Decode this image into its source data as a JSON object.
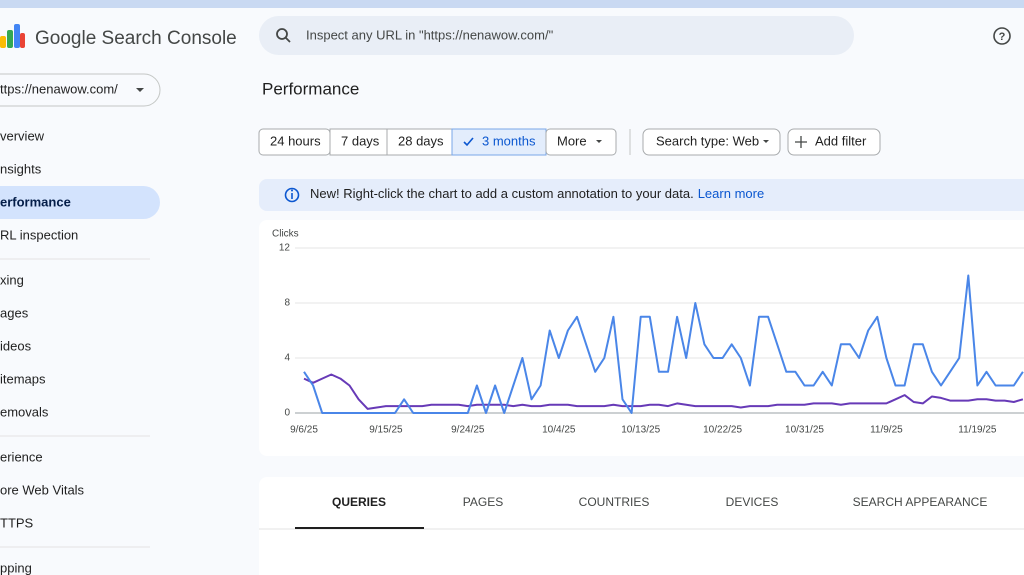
{
  "header": {
    "product": "Google Search Console",
    "search_placeholder": "Inspect any URL in \"https://nenawow.com/\""
  },
  "sidebar": {
    "property": "ttps://nenawow.com/",
    "groups": [
      [
        "verview",
        "nsights",
        "erformance",
        "RL inspection"
      ],
      [
        "xing",
        "ages",
        "ideos",
        "itemaps",
        "emovals"
      ],
      [
        "erience",
        "ore Web Vitals",
        "TTPS"
      ],
      [
        "pping"
      ]
    ],
    "selected": [
      0,
      2
    ]
  },
  "page_title": "Performance",
  "date_filters": [
    "24 hours",
    "7 days",
    "28 days",
    "3 months",
    "More"
  ],
  "selected_filter": 3,
  "filters": [
    "Search type: Web",
    "Add filter"
  ],
  "banner": {
    "text": "New! Right-click the chart to add a custom annotation to your data.",
    "link": "Learn more"
  },
  "chart_data": {
    "type": "line",
    "y_label": "Clicks",
    "categories": [
      "9/6/25",
      null,
      null,
      null,
      null,
      null,
      null,
      null,
      null,
      "9/15/25",
      null,
      null,
      null,
      null,
      null,
      null,
      null,
      null,
      "9/24/25",
      null,
      null,
      null,
      null,
      null,
      null,
      null,
      null,
      null,
      "10/4/25",
      null,
      null,
      null,
      null,
      null,
      null,
      null,
      null,
      "10/13/25",
      null,
      null,
      null,
      null,
      null,
      null,
      null,
      null,
      "10/22/25",
      null,
      null,
      null,
      null,
      null,
      null,
      null,
      null,
      "10/31/25",
      null,
      null,
      null,
      null,
      null,
      null,
      null,
      null,
      "11/9/25",
      null,
      null,
      null,
      null,
      null,
      null,
      null,
      null,
      null,
      "11/19/25",
      null,
      null,
      null,
      null,
      null
    ],
    "series": [
      {
        "color": "#4a86e8",
        "values": [
          3,
          2,
          0,
          0,
          0,
          0,
          0,
          0,
          0,
          0,
          0,
          1,
          0,
          0,
          0,
          0,
          0,
          0,
          0,
          2,
          0,
          2,
          0,
          2,
          4,
          1,
          2,
          6,
          4,
          6,
          7,
          5,
          3,
          4,
          7,
          1,
          0,
          7,
          7,
          3,
          3,
          7,
          4,
          8,
          5,
          4,
          4,
          5,
          4,
          2,
          7,
          7,
          5,
          3,
          3,
          2,
          2,
          3,
          2,
          5,
          5,
          4,
          6,
          7,
          4,
          2,
          2,
          5,
          5,
          3,
          2,
          3,
          4,
          10,
          2,
          3,
          2,
          2,
          2,
          3
        ]
      },
      {
        "color": "#673ab7",
        "values": [
          2.5,
          2.2,
          2.5,
          2.8,
          2.5,
          2,
          1,
          0.3,
          0.4,
          0.5,
          0.5,
          0.5,
          0.5,
          0.5,
          0.6,
          0.6,
          0.6,
          0.6,
          0.5,
          0.6,
          0.6,
          0.6,
          0.6,
          0.5,
          0.6,
          0.5,
          0.5,
          0.6,
          0.6,
          0.6,
          0.5,
          0.5,
          0.5,
          0.5,
          0.6,
          0.5,
          0.5,
          0.5,
          0.6,
          0.6,
          0.5,
          0.7,
          0.6,
          0.5,
          0.5,
          0.5,
          0.5,
          0.5,
          0.4,
          0.5,
          0.5,
          0.5,
          0.6,
          0.6,
          0.6,
          0.6,
          0.7,
          0.7,
          0.7,
          0.6,
          0.7,
          0.7,
          0.7,
          0.7,
          0.7,
          1,
          1.3,
          0.8,
          0.7,
          1.2,
          1.1,
          0.9,
          0.9,
          0.9,
          1,
          1,
          0.9,
          0.9,
          0.8,
          1
        ]
      }
    ],
    "ylim": [
      0,
      12
    ],
    "yticks": [
      0,
      4,
      8,
      12
    ],
    "grid": true
  },
  "tabs": [
    "QUERIES",
    "PAGES",
    "COUNTRIES",
    "DEVICES",
    "SEARCH APPEARANCE"
  ],
  "active_tab": 0
}
